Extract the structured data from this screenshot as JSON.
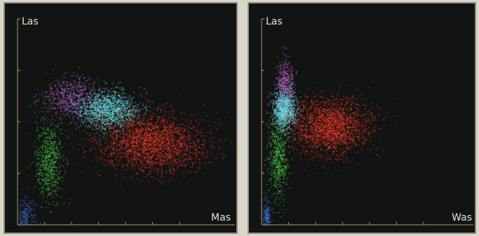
{
  "colors": {
    "background": "#111412",
    "axis": "#b09a6a",
    "frame": "#8f8b80",
    "label": "#e6e2d6"
  },
  "chart_data": [
    {
      "type": "scatter",
      "xlabel": "Mas",
      "ylabel": "Las",
      "xlim": [
        0,
        10
      ],
      "ylim": [
        0,
        10
      ],
      "grid": false,
      "series": [
        {
          "color": "#3b6fd8",
          "center": [
            0.4,
            0.4
          ],
          "spread": [
            0.25,
            0.45
          ],
          "count": 260
        },
        {
          "color": "#4ecb4a",
          "center": [
            1.6,
            3.1
          ],
          "spread": [
            0.35,
            1.0
          ],
          "count": 700
        },
        {
          "color": "#c46ad6",
          "center": [
            2.8,
            6.2
          ],
          "spread": [
            0.8,
            0.5
          ],
          "count": 650
        },
        {
          "color": "#6fe0e8",
          "center": [
            4.6,
            5.6
          ],
          "spread": [
            0.8,
            0.45
          ],
          "count": 1500
        },
        {
          "color": "#ff3a2a",
          "center": [
            6.8,
            4.0
          ],
          "spread": [
            1.4,
            0.7
          ],
          "count": 2400
        }
      ]
    },
    {
      "type": "scatter",
      "xlabel": "Was",
      "ylabel": "Las",
      "xlim": [
        0,
        10
      ],
      "ylim": [
        0,
        10
      ],
      "grid": false,
      "series": [
        {
          "color": "#3b6fd8",
          "center": [
            0.25,
            0.4
          ],
          "spread": [
            0.12,
            0.45
          ],
          "count": 240
        },
        {
          "color": "#4ecb4a",
          "center": [
            0.85,
            3.3
          ],
          "spread": [
            0.25,
            1.0
          ],
          "count": 650
        },
        {
          "color": "#c46ad6",
          "center": [
            1.2,
            6.7
          ],
          "spread": [
            0.25,
            0.65
          ],
          "count": 520
        },
        {
          "color": "#6fe0e8",
          "center": [
            1.15,
            5.6
          ],
          "spread": [
            0.3,
            0.45
          ],
          "count": 1100
        },
        {
          "color": "#ff3a2a",
          "center": [
            3.5,
            4.8
          ],
          "spread": [
            1.0,
            0.7
          ],
          "count": 2100
        }
      ]
    }
  ]
}
